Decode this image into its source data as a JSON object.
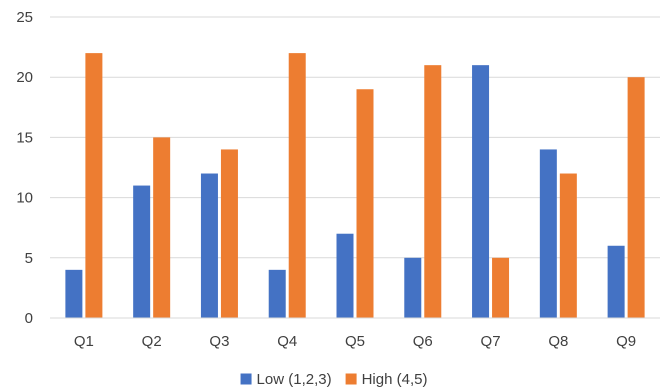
{
  "chart_data": {
    "type": "bar",
    "categories": [
      "Q1",
      "Q2",
      "Q3",
      "Q4",
      "Q5",
      "Q6",
      "Q7",
      "Q8",
      "Q9"
    ],
    "series": [
      {
        "name": "Low (1,2,3)",
        "color": "#4472C4",
        "values": [
          4,
          11,
          12,
          4,
          7,
          5,
          21,
          14,
          6
        ]
      },
      {
        "name": "High (4,5)",
        "color": "#ED7D31",
        "values": [
          22,
          15,
          14,
          22,
          19,
          21,
          5,
          12,
          20
        ]
      }
    ],
    "ylim": [
      0,
      25
    ],
    "yticks": [
      0,
      5,
      10,
      15,
      20,
      25
    ],
    "title": "",
    "xlabel": "",
    "ylabel": "",
    "grid": true,
    "legend_position": "bottom"
  }
}
